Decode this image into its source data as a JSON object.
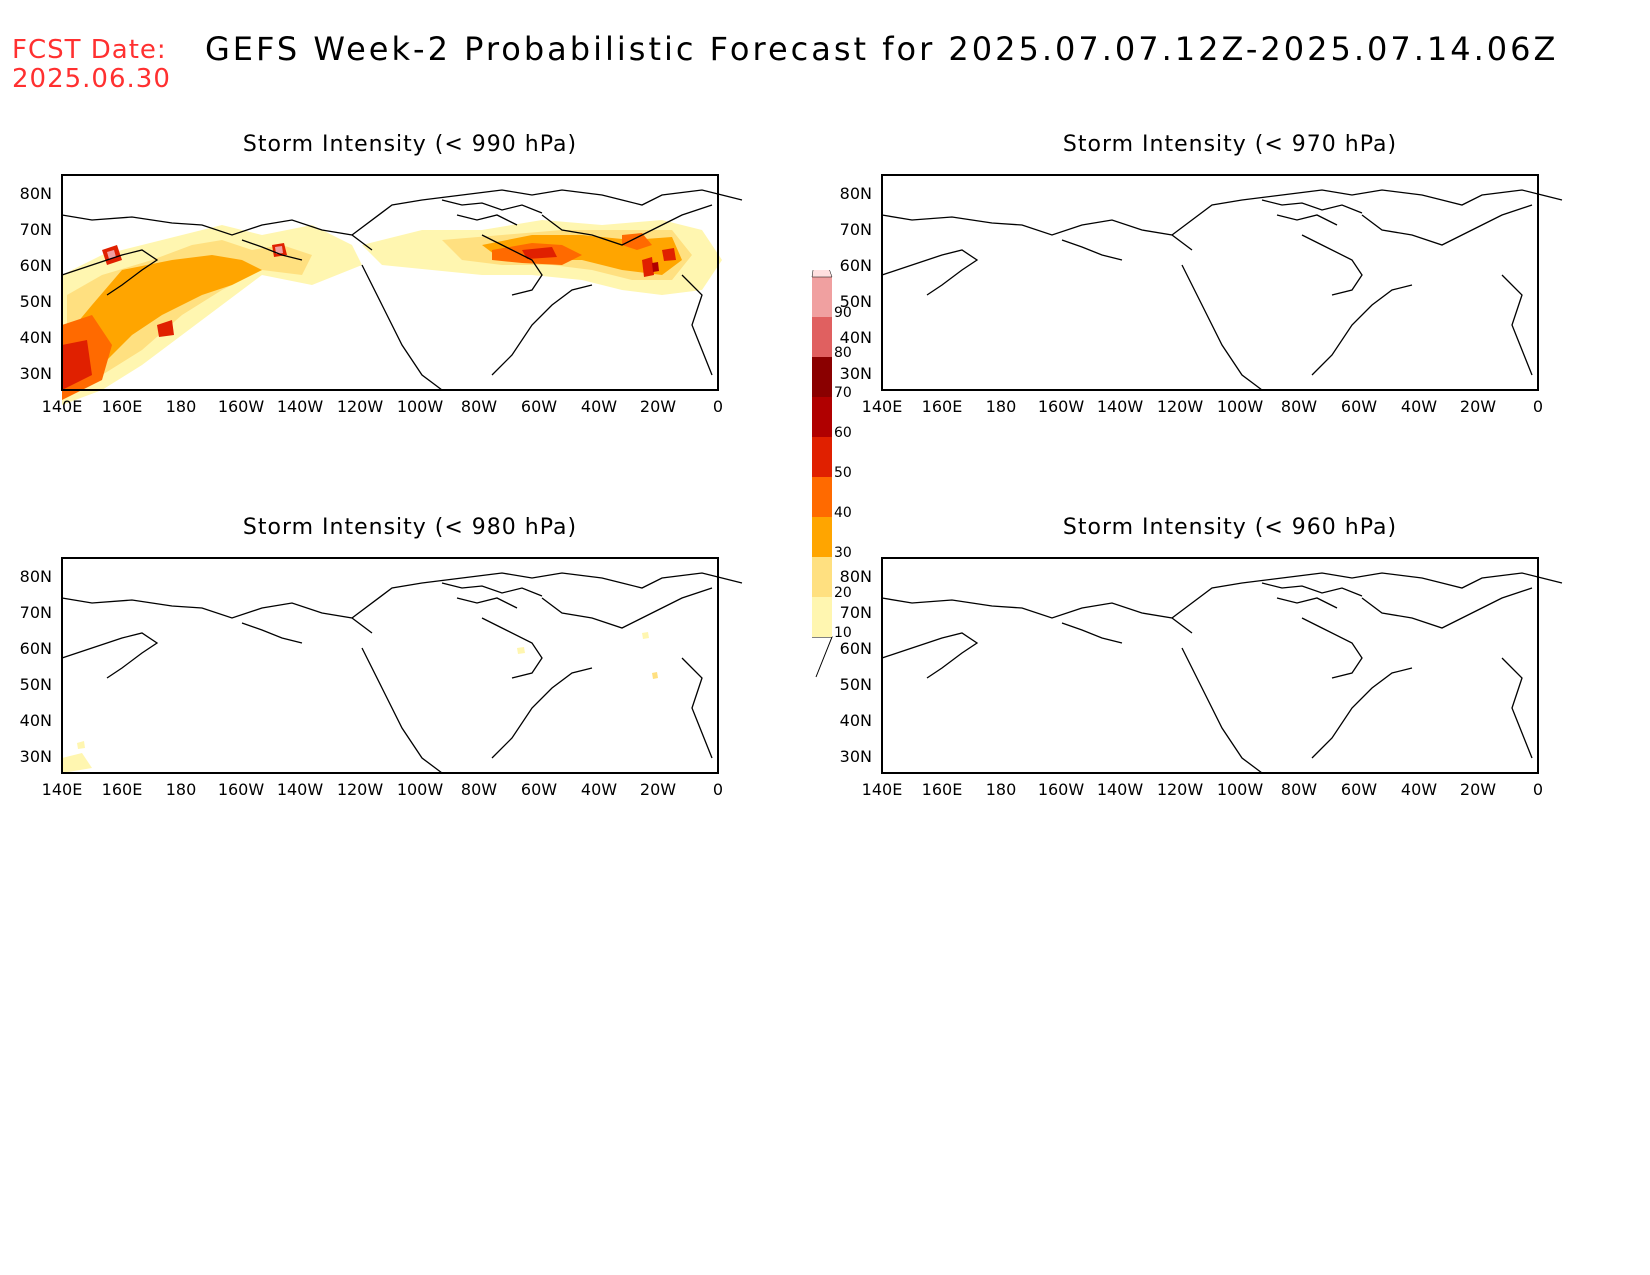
{
  "header": {
    "fcst_label": "FCST Date:",
    "fcst_date": "2025.06.30",
    "title": "GEFS Week-2 Probabilistic Forecast for 2025.07.07.12Z-2025.07.14.06Z"
  },
  "axes": {
    "lon_labels": [
      "140E",
      "160E",
      "180",
      "160W",
      "140W",
      "120W",
      "100W",
      "80W",
      "60W",
      "40W",
      "20W",
      "0"
    ],
    "lat_labels": [
      "80N",
      "70N",
      "60N",
      "50N",
      "40N",
      "30N"
    ]
  },
  "panels": [
    {
      "id": "p990",
      "title": "Storm Intensity (< 990 hPa)"
    },
    {
      "id": "p970",
      "title": "Storm Intensity (< 970 hPa)"
    },
    {
      "id": "p980",
      "title": "Storm Intensity (< 980 hPa)"
    },
    {
      "id": "p960",
      "title": "Storm Intensity (< 960 hPa)"
    }
  ],
  "colorbar": {
    "levels": [
      "10",
      "20",
      "30",
      "40",
      "50",
      "60",
      "70",
      "80",
      "90"
    ],
    "colors": [
      "#fff6b0",
      "#ffe080",
      "#ffa500",
      "#ff6a00",
      "#e02000",
      "#b00000",
      "#8a0000",
      "#e06060",
      "#f0a0a0",
      "#ffe0e0"
    ]
  }
}
